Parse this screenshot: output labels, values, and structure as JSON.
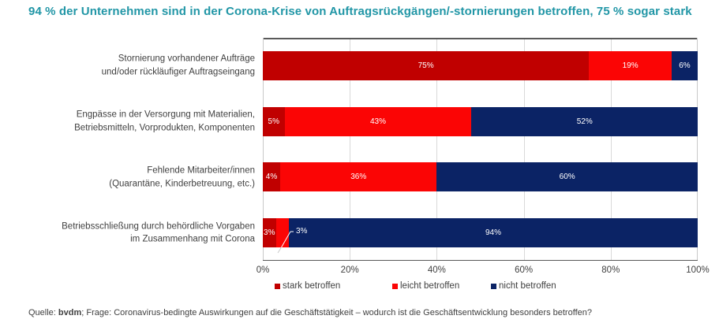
{
  "title": "94 % der Unternehmen sind in der Corona-Krise von Auftragsrückgängen/-stornierungen betroffen, 75 % sogar stark",
  "chart_data": {
    "type": "bar",
    "stacked": true,
    "orientation": "horizontal",
    "categories": [
      "Stornierung vorhandener Aufträge\nund/oder rückläufiger Auftragseingang",
      "Engpässe in der Versorgung mit Materialien,\nBetriebsmitteln, Vorprodukten, Komponenten",
      "Fehlende Mitarbeiter/innen\n(Quarantäne, Kinderbetreuung, etc.)",
      "Betriebsschließung durch behördliche Vorgaben\nim Zusammenhang mit Corona"
    ],
    "series": [
      {
        "name": "stark betroffen",
        "color": "#C00000",
        "values": [
          75,
          5,
          4,
          3
        ]
      },
      {
        "name": "leicht betroffen",
        "color": "#FB0505",
        "values": [
          19,
          43,
          36,
          3
        ]
      },
      {
        "name": "nicht betroffen",
        "color": "#0B2365",
        "values": [
          6,
          52,
          60,
          94
        ]
      }
    ],
    "value_labels": [
      [
        "75%",
        "19%",
        "6%"
      ],
      [
        "5%",
        "43%",
        "52%"
      ],
      [
        "4%",
        "36%",
        "60%"
      ],
      [
        "3%",
        "3%",
        "94%"
      ]
    ],
    "callout": {
      "category_index": 3,
      "series_index": 1,
      "label": "3%"
    },
    "xlabel": "",
    "ylabel": "",
    "xlim": [
      0,
      100
    ],
    "x_ticks": [
      "0%",
      "20%",
      "40%",
      "60%",
      "80%",
      "100%"
    ],
    "grid": "vertical",
    "legend_position": "bottom"
  },
  "footer": {
    "prefix": "Quelle: ",
    "source_bold": "bvdm",
    "rest": "; Frage: Coronavirus-bedingte Auswirkungen auf die Geschäftstätigkeit – wodurch ist die Geschäftsentwicklung besonders betroffen?"
  },
  "colors": {
    "title": "#2196A6",
    "text": "#404040",
    "grid": "#D9D9D9",
    "axis": "#595959",
    "leader_line": "#C9C9C9"
  }
}
